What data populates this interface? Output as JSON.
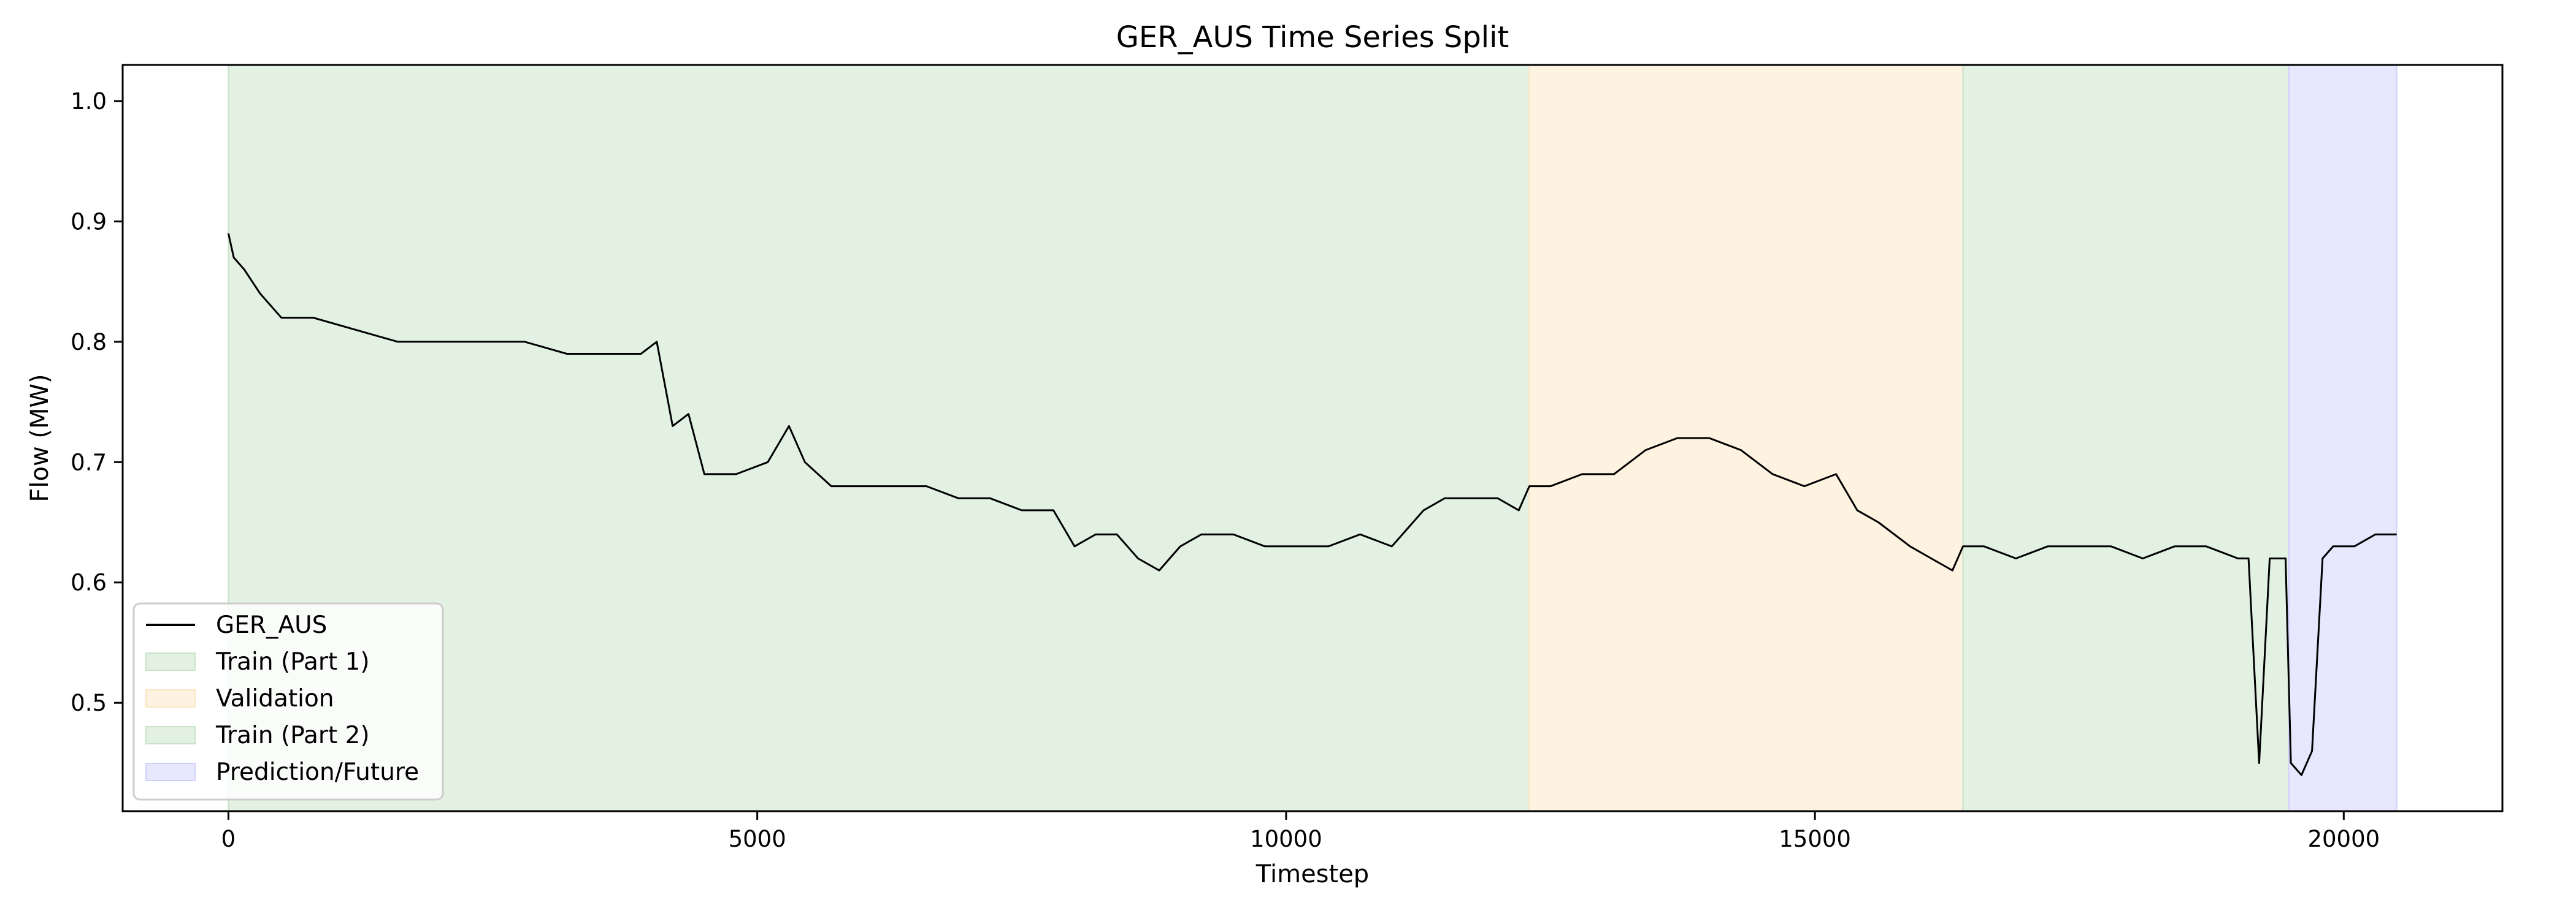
{
  "chart_data": {
    "type": "line",
    "title": "GER_AUS Time Series Split",
    "xlabel": "Timestep",
    "ylabel": "Flow (MW)",
    "xlim": [
      -1000,
      21500
    ],
    "ylim": [
      0.41,
      1.03
    ],
    "xticks": [
      0,
      5000,
      10000,
      15000,
      20000
    ],
    "xtick_labels": [
      "0",
      "5000",
      "10000",
      "15000",
      "20000"
    ],
    "yticks": [
      0.5,
      0.6,
      0.7,
      0.8,
      0.9,
      1.0
    ],
    "ytick_labels": [
      "0.5",
      "0.6",
      "0.7",
      "0.8",
      "0.9",
      "1.0"
    ],
    "grid": false,
    "legend_position": "lower-left",
    "regions": [
      {
        "name": "Train (Part 1)",
        "start": 0,
        "end": 12300,
        "color": "#c8e3c8"
      },
      {
        "name": "Validation",
        "start": 12300,
        "end": 16400,
        "color": "#fde5c3"
      },
      {
        "name": "Train (Part 2)",
        "start": 16400,
        "end": 19480,
        "color": "#c8e3c8"
      },
      {
        "name": "Prediction/Future",
        "start": 19480,
        "end": 20500,
        "color": "#d0d0fb"
      }
    ],
    "series": [
      {
        "name": "GER_AUS",
        "color": "#000000",
        "x": [
          0,
          50,
          150,
          300,
          500,
          800,
          1200,
          1600,
          2000,
          2400,
          2800,
          3200,
          3600,
          3900,
          4050,
          4200,
          4350,
          4500,
          4800,
          5100,
          5300,
          5450,
          5700,
          6000,
          6300,
          6600,
          6900,
          7200,
          7500,
          7800,
          8000,
          8200,
          8400,
          8600,
          8800,
          9000,
          9200,
          9500,
          9800,
          10100,
          10400,
          10700,
          11000,
          11300,
          11500,
          11700,
          12000,
          12200,
          12300,
          12500,
          12800,
          13100,
          13400,
          13700,
          14000,
          14300,
          14600,
          14900,
          15200,
          15400,
          15600,
          15900,
          16100,
          16300,
          16400,
          16600,
          16900,
          17200,
          17500,
          17800,
          18100,
          18400,
          18700,
          19000,
          19100,
          19200,
          19300,
          19350,
          19450,
          19500,
          19600,
          19700,
          19800,
          19900,
          20100,
          20300,
          20500
        ],
        "y": [
          0.89,
          0.87,
          0.86,
          0.84,
          0.82,
          0.82,
          0.81,
          0.8,
          0.8,
          0.8,
          0.8,
          0.79,
          0.79,
          0.79,
          0.8,
          0.73,
          0.74,
          0.69,
          0.69,
          0.7,
          0.73,
          0.7,
          0.68,
          0.68,
          0.68,
          0.68,
          0.67,
          0.67,
          0.66,
          0.66,
          0.63,
          0.64,
          0.64,
          0.62,
          0.61,
          0.63,
          0.64,
          0.64,
          0.63,
          0.63,
          0.63,
          0.64,
          0.63,
          0.66,
          0.67,
          0.67,
          0.67,
          0.66,
          0.68,
          0.68,
          0.69,
          0.69,
          0.71,
          0.72,
          0.72,
          0.71,
          0.69,
          0.68,
          0.69,
          0.66,
          0.65,
          0.63,
          0.62,
          0.61,
          0.63,
          0.63,
          0.62,
          0.63,
          0.63,
          0.63,
          0.62,
          0.63,
          0.63,
          0.62,
          0.62,
          0.45,
          0.62,
          0.62,
          0.62,
          0.45,
          0.44,
          0.46,
          0.62,
          0.63,
          0.63,
          0.64,
          0.64
        ]
      }
    ]
  }
}
